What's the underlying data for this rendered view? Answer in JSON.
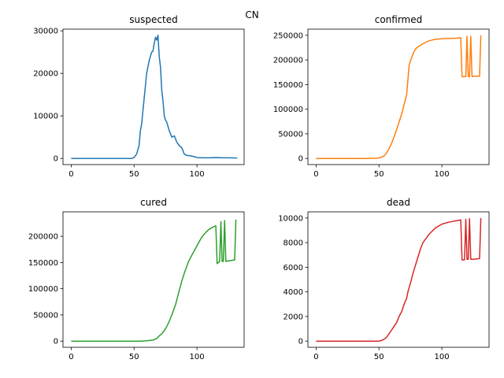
{
  "figure_title": "CN",
  "chart_data": [
    {
      "type": "line",
      "title": "suspected",
      "color": "#1f77b4",
      "xlim": [
        -6.5,
        137.5
      ],
      "ylim": [
        -1450,
        30400
      ],
      "xticks": [
        0,
        50,
        100
      ],
      "yticks": [
        0,
        10000,
        20000,
        30000
      ],
      "x": [
        0,
        10,
        20,
        30,
        40,
        48,
        50,
        52,
        54,
        55,
        56,
        58,
        60,
        62,
        64,
        65,
        66,
        67,
        68,
        69,
        70,
        71,
        72,
        73,
        74,
        75,
        76,
        78,
        80,
        82,
        84,
        86,
        88,
        90,
        92,
        95,
        98,
        100,
        105,
        110,
        115,
        120,
        125,
        132
      ],
      "y": [
        0,
        0,
        0,
        0,
        0,
        0,
        200,
        1000,
        3000,
        6500,
        8000,
        14000,
        20000,
        23000,
        25000,
        25200,
        27000,
        28500,
        27800,
        29000,
        24000,
        21500,
        16000,
        13500,
        10000,
        9000,
        8500,
        6500,
        5000,
        5300,
        3800,
        3000,
        2500,
        1000,
        700,
        600,
        400,
        200,
        150,
        150,
        200,
        150,
        150,
        100
      ]
    },
    {
      "type": "line",
      "title": "confirmed",
      "color": "#ff7f0e",
      "xlim": [
        -6.5,
        137.5
      ],
      "ylim": [
        -12500,
        262500
      ],
      "xticks": [
        0,
        50,
        100
      ],
      "yticks": [
        0,
        50000,
        100000,
        150000,
        200000,
        250000
      ],
      "x": [
        0,
        10,
        20,
        30,
        40,
        48,
        50,
        52,
        54,
        56,
        58,
        60,
        62,
        65,
        68,
        70,
        72,
        74,
        76,
        78,
        80,
        85,
        90,
        95,
        100,
        105,
        110,
        115,
        116,
        119,
        120,
        121,
        122,
        123,
        124,
        125,
        130,
        131
      ],
      "y": [
        0,
        0,
        0,
        0,
        0,
        500,
        1000,
        2500,
        5000,
        11000,
        20000,
        30000,
        44000,
        66000,
        90000,
        110000,
        130000,
        190000,
        205000,
        218000,
        225000,
        233000,
        239000,
        242000,
        243000,
        243500,
        244000,
        245000,
        166000,
        166000,
        248000,
        166000,
        166000,
        248000,
        166000,
        167000,
        167000,
        250000
      ]
    },
    {
      "type": "line",
      "title": "cured",
      "color": "#2ca02c",
      "xlim": [
        -6.5,
        137.5
      ],
      "ylim": [
        -11750,
        246750
      ],
      "xticks": [
        0,
        50,
        100
      ],
      "yticks": [
        0,
        50000,
        100000,
        150000,
        200000
      ],
      "x": [
        0,
        10,
        20,
        30,
        40,
        50,
        55,
        60,
        65,
        68,
        70,
        72,
        74,
        76,
        78,
        80,
        83,
        85,
        88,
        90,
        93,
        95,
        98,
        100,
        103,
        105,
        108,
        110,
        113,
        115,
        116,
        118,
        119,
        120,
        121,
        122,
        123,
        124,
        125,
        130,
        131
      ],
      "y": [
        0,
        0,
        0,
        0,
        0,
        0,
        0,
        500,
        2000,
        5000,
        10000,
        14000,
        20000,
        28000,
        38000,
        50000,
        70000,
        88000,
        115000,
        130000,
        150000,
        160000,
        173000,
        182000,
        195000,
        202000,
        210000,
        214000,
        218000,
        220000,
        148000,
        152000,
        228000,
        152000,
        152000,
        230000,
        152000,
        153000,
        153000,
        155000,
        232000
      ]
    },
    {
      "type": "line",
      "title": "dead",
      "color": "#d62728",
      "xlim": [
        -6.5,
        137.5
      ],
      "ylim": [
        -500,
        10500
      ],
      "xticks": [
        0,
        50,
        100
      ],
      "yticks": [
        0,
        2000,
        4000,
        6000,
        8000,
        10000
      ],
      "x": [
        0,
        10,
        20,
        30,
        40,
        50,
        52,
        54,
        56,
        58,
        60,
        62,
        64,
        66,
        68,
        70,
        72,
        73,
        75,
        77,
        80,
        83,
        85,
        90,
        95,
        100,
        105,
        110,
        113,
        115,
        116,
        118,
        119,
        120,
        121,
        122,
        123,
        124,
        125,
        130,
        131
      ],
      "y": [
        0,
        0,
        0,
        0,
        0,
        0,
        50,
        150,
        300,
        600,
        900,
        1200,
        1500,
        2000,
        2400,
        3000,
        3500,
        4000,
        4700,
        5500,
        6500,
        7500,
        8000,
        8700,
        9200,
        9500,
        9650,
        9750,
        9800,
        9850,
        6600,
        6600,
        9900,
        6650,
        6650,
        9950,
        6650,
        6650,
        6650,
        6700,
        10000
      ]
    }
  ]
}
